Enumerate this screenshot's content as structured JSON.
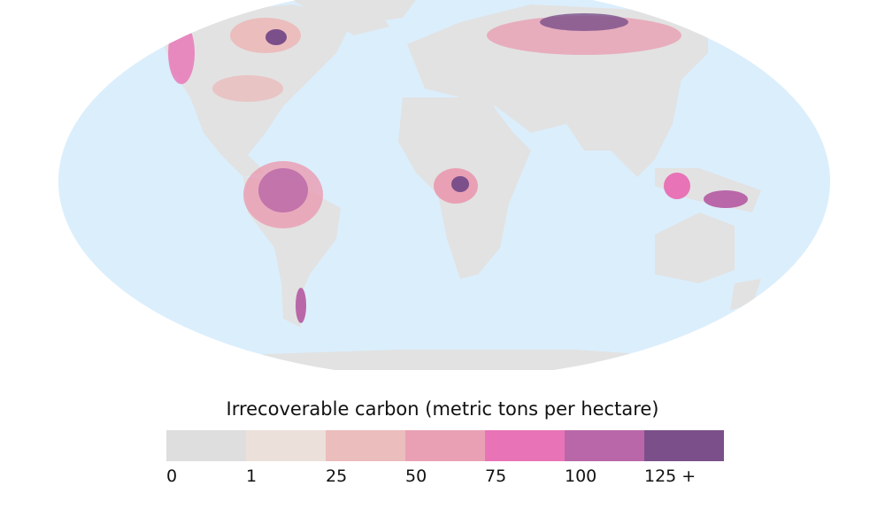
{
  "legend": {
    "title": "Irrecoverable carbon (metric tons per hectare)",
    "bins": [
      {
        "label": "0",
        "color": "#dedede"
      },
      {
        "label": "1",
        "color": "#ebe0da"
      },
      {
        "label": "25",
        "color": "#ebbdbd"
      },
      {
        "label": "50",
        "color": "#e9a0b4"
      },
      {
        "label": "75",
        "color": "#e873b6"
      },
      {
        "label": "100",
        "color": "#b967a8"
      },
      {
        "label": "125 +",
        "color": "#7b4f8a"
      }
    ]
  },
  "map": {
    "projection": "Robinson",
    "ocean_color": "#dbeefc",
    "land_color": "#e2e2e2"
  }
}
